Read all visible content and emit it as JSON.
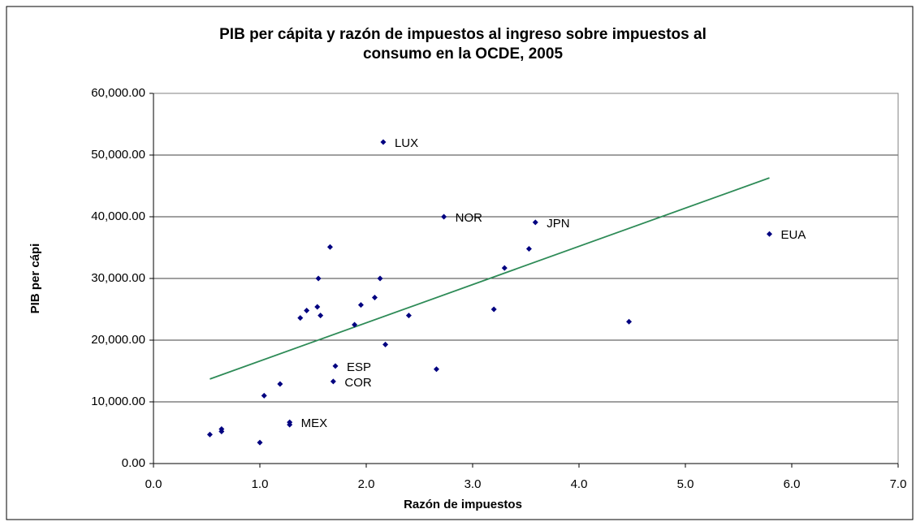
{
  "chart_data": {
    "type": "scatter",
    "title": [
      "PIB per cápita y razón de impuestos al ingreso sobre impuestos al",
      "consumo en la OCDE, 2005"
    ],
    "x_label": "Razón de impuestos",
    "y_label": "PIB per cápi",
    "color": "#000080",
    "x": [
      0.53,
      0.64,
      0.64,
      1.0,
      1.04,
      1.19,
      1.28,
      1.28,
      1.38,
      1.44,
      1.54,
      1.55,
      1.57,
      1.66,
      1.69,
      1.71,
      1.89,
      1.95,
      2.08,
      2.13,
      2.16,
      2.18,
      2.4,
      2.66,
      2.73,
      3.2,
      3.3,
      3.53,
      3.59,
      4.47,
      5.79
    ],
    "values": [
      4700,
      5600,
      5200,
      3400,
      11000,
      12900,
      6700,
      6300,
      23600,
      24800,
      25400,
      30000,
      24000,
      35100,
      13300,
      15800,
      22500,
      25700,
      26900,
      30000,
      52100,
      19300,
      24000,
      15300,
      40000,
      25000,
      31700,
      34800,
      39100,
      23000,
      37200
    ],
    "point_labels": [
      null,
      null,
      null,
      null,
      null,
      null,
      "MEX",
      null,
      null,
      null,
      null,
      null,
      null,
      null,
      "COR",
      "ESP",
      null,
      null,
      null,
      null,
      "LUX",
      null,
      null,
      null,
      "NOR",
      null,
      null,
      null,
      "JPN",
      null,
      "EUA"
    ],
    "trendline": {
      "color": "#2e8b57",
      "x": [
        0.53,
        5.79
      ],
      "y": [
        13700,
        46300
      ]
    },
    "xlim": [
      0,
      7
    ],
    "xticks": [
      {
        "value": 0,
        "label": "0.0"
      },
      {
        "value": 1,
        "label": "1.0"
      },
      {
        "value": 2,
        "label": "2.0"
      },
      {
        "value": 3,
        "label": "3.0"
      },
      {
        "value": 4,
        "label": "4.0"
      },
      {
        "value": 5,
        "label": "5.0"
      },
      {
        "value": 6,
        "label": "6.0"
      },
      {
        "value": 7,
        "label": "7.0"
      }
    ],
    "ylim": [
      0,
      60000
    ],
    "yticks": [
      {
        "value": 0,
        "label": "0.00"
      },
      {
        "value": 10000,
        "label": "10,000.00"
      },
      {
        "value": 20000,
        "label": "20,000.00"
      },
      {
        "value": 30000,
        "label": "30,000.00"
      },
      {
        "value": 40000,
        "label": "40,000.00"
      },
      {
        "value": 50000,
        "label": "50,000.00"
      },
      {
        "value": 60000,
        "label": "60,000.00"
      }
    ],
    "grid": true
  }
}
